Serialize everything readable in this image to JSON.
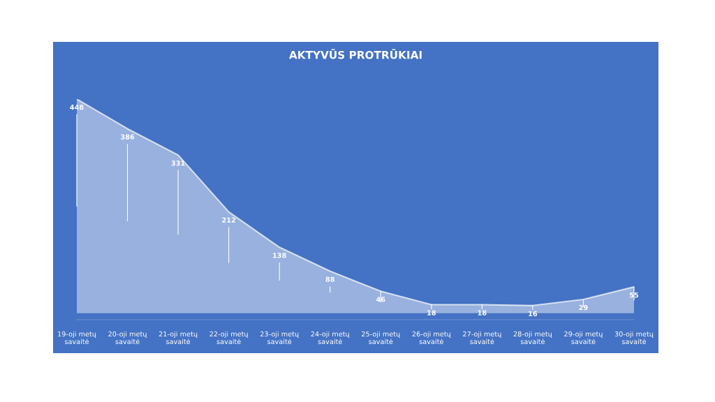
{
  "chart_data": {
    "type": "area",
    "title": "AKTYVŪS PROTRŪKIAI",
    "categories": [
      "19-oji metų\nsavaitė",
      "20-oji metų\nsavaitė",
      "21-oji metų\nsavaitė",
      "22-oji metų\nsavaitė",
      "23-oji metų\nsavaitė",
      "24-oji metų\nsavaitė",
      "25-oji metų\nsavaitė",
      "26-oji metų\nsavaitė",
      "27-oji metų\nsavaitė",
      "28-oji metų\nsavaitė",
      "29-oji metų\nsavaitė",
      "30-oji metų\nsavaitė"
    ],
    "series": [
      {
        "color": "#ffffff",
        "values": [
          448,
          386,
          331,
          212,
          138,
          88,
          46,
          18,
          18,
          16,
          29,
          55
        ]
      }
    ],
    "data_labels": true,
    "grid": false,
    "legend": false
  }
}
